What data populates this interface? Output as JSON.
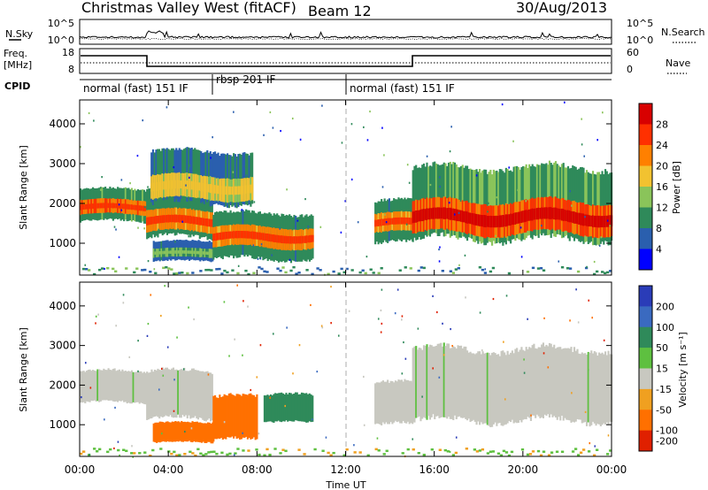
{
  "header": {
    "title": "Christmas Valley West (fitACF)",
    "beam": "Beam 12",
    "date": "30/Aug/2013"
  },
  "top_panel": {
    "left_label": "N.Sky",
    "left_ticks": [
      "10^5",
      "10^0"
    ],
    "right_ticks": [
      "10^5",
      "10^0"
    ],
    "right_label": "N.Search",
    "freq_label_line1": "Freq.",
    "freq_label_line2": "[MHz]",
    "freq_ticks": [
      "18",
      "8"
    ],
    "nave_ticks": [
      "60",
      "0"
    ],
    "nave_label": "Nave",
    "cpid_label": "CPID",
    "cpid_segments": [
      "normal (fast) 151 IF",
      "rbsp 201 IF",
      "normal (fast) 151 IF"
    ]
  },
  "colors": {
    "power": [
      "#0000ff",
      "#2a5fae",
      "#2f8a5a",
      "#8ac45a",
      "#f2c230",
      "#ff8000",
      "#ff3000",
      "#d80000"
    ],
    "velocity": [
      "#2a3cb8",
      "#3a6ac0",
      "#2f8a5a",
      "#5ec040",
      "#c8c8c0",
      "#f0a020",
      "#ff7000",
      "#e02000"
    ]
  },
  "chart_data": [
    {
      "type": "heatmap",
      "panel": "power",
      "ylabel": "Slant Range [km]",
      "ylim": [
        200,
        4600
      ],
      "yticks": [
        1000,
        2000,
        3000,
        4000
      ],
      "xlim_hours": [
        0,
        24
      ],
      "colorbar_label": "Power [dB]",
      "colorbar_ticks": [
        4,
        8,
        12,
        16,
        20,
        24,
        28
      ],
      "colorbar_range": [
        0,
        32
      ],
      "echo_regions": [
        {
          "t_start": 0.0,
          "t_end": 3.0,
          "r_min": 1550,
          "r_max": 2350,
          "peak_range": 1900,
          "peak_db": 28
        },
        {
          "t_start": 3.0,
          "t_end": 6.0,
          "r_min": 1150,
          "r_max": 2350,
          "peak_range": 1550,
          "peak_db": 26
        },
        {
          "t_start": 3.2,
          "t_end": 7.8,
          "r_min": 2000,
          "r_max": 3300,
          "peak_range": 2400,
          "peak_db": 20
        },
        {
          "t_start": 3.3,
          "t_end": 6.0,
          "r_min": 550,
          "r_max": 1050,
          "peak_range": 750,
          "peak_db": 14
        },
        {
          "t_start": 6.0,
          "t_end": 10.5,
          "r_min": 600,
          "r_max": 1750,
          "peak_range": 1150,
          "peak_db": 26
        },
        {
          "t_start": 13.3,
          "t_end": 15.0,
          "r_min": 1000,
          "r_max": 2050,
          "peak_range": 1500,
          "peak_db": 26
        },
        {
          "t_start": 15.0,
          "t_end": 24.0,
          "r_min": 1100,
          "r_max": 2900,
          "peak_range": 1650,
          "peak_db": 30
        }
      ]
    },
    {
      "type": "heatmap",
      "panel": "velocity",
      "ylabel": "Slant Range [km]",
      "xlabel": "Time UT",
      "ylim": [
        200,
        4600
      ],
      "yticks": [
        1000,
        2000,
        3000,
        4000
      ],
      "xlim_hours": [
        0,
        24
      ],
      "xtick_labels": [
        "00:00",
        "04:00",
        "08:00",
        "12:00",
        "16:00",
        "20:00",
        "00:00"
      ],
      "colorbar_label": "Velocity [m s⁻¹]",
      "colorbar_ticks": [
        200,
        100,
        50,
        15,
        -15,
        -50,
        -100,
        -200
      ],
      "echo_regions": [
        {
          "t_start": 0.0,
          "t_end": 3.0,
          "r_min": 1550,
          "r_max": 2350,
          "velocity": 0
        },
        {
          "t_start": 3.0,
          "t_end": 6.0,
          "r_min": 1150,
          "r_max": 2350,
          "velocity": 0
        },
        {
          "t_start": 3.3,
          "t_end": 6.0,
          "r_min": 550,
          "r_max": 1050,
          "velocity": -60
        },
        {
          "t_start": 6.0,
          "t_end": 8.0,
          "r_min": 600,
          "r_max": 1700,
          "velocity": -70
        },
        {
          "t_start": 8.3,
          "t_end": 10.5,
          "r_min": 1050,
          "r_max": 1750,
          "velocity": 40
        },
        {
          "t_start": 13.3,
          "t_end": 15.0,
          "r_min": 1000,
          "r_max": 2050,
          "velocity": 0
        },
        {
          "t_start": 15.0,
          "t_end": 24.0,
          "r_min": 1100,
          "r_max": 2900,
          "velocity": 0
        }
      ]
    }
  ]
}
